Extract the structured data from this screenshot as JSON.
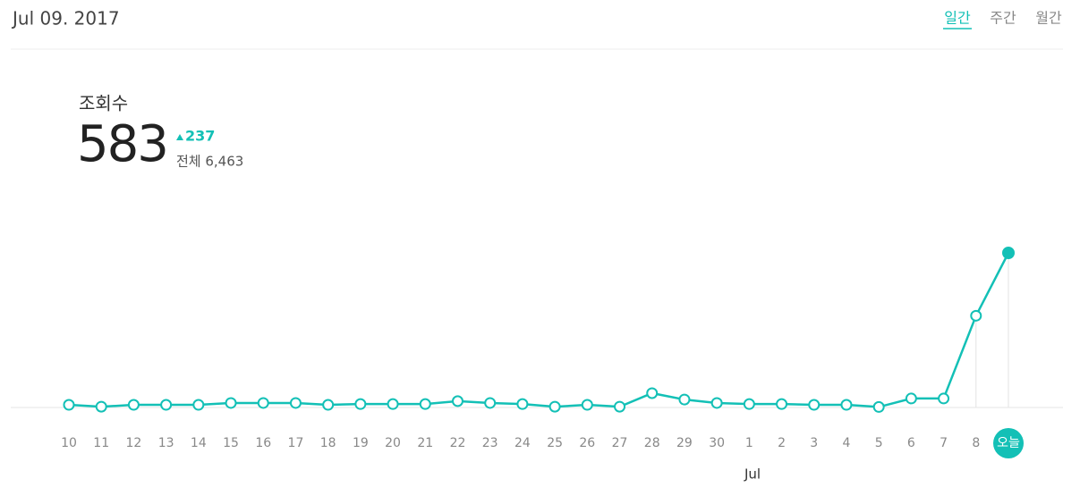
{
  "header": {
    "date": "Jul 09. 2017",
    "tabs": [
      "일간",
      "주간",
      "월간"
    ]
  },
  "summary": {
    "label": "조회수",
    "value": "583",
    "change": "237",
    "total": "전체 6,463"
  },
  "chart_data": {
    "type": "line",
    "color": "#13c0b6",
    "categories": [
      "10",
      "11",
      "12",
      "13",
      "14",
      "15",
      "16",
      "17",
      "18",
      "19",
      "20",
      "21",
      "22",
      "23",
      "24",
      "25",
      "26",
      "27",
      "28",
      "29",
      "30",
      "1",
      "2",
      "3",
      "4",
      "5",
      "6",
      "7",
      "8",
      "오늘"
    ],
    "values": [
      10,
      3,
      10,
      10,
      10,
      17,
      17,
      17,
      10,
      13,
      13,
      13,
      24,
      17,
      13,
      3,
      10,
      3,
      54,
      30,
      17,
      13,
      13,
      10,
      10,
      2,
      34,
      34,
      346,
      583
    ],
    "month_label": "Jul"
  }
}
